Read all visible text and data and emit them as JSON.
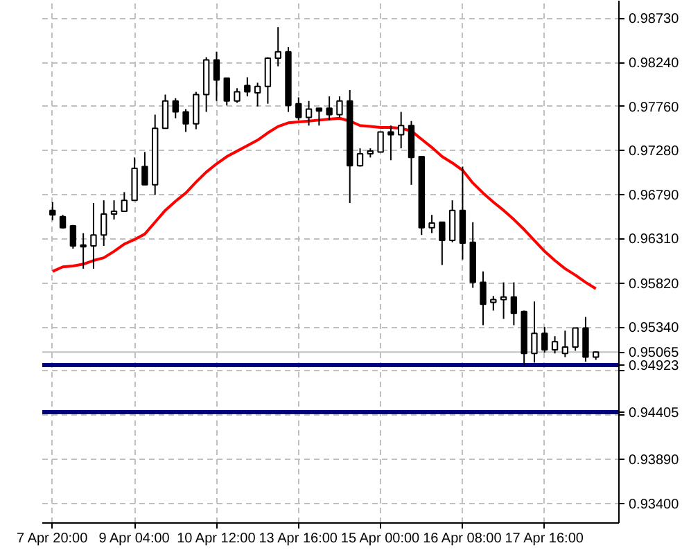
{
  "chart_data": {
    "type": "candlestick",
    "categories": [
      "7 Apr 20:00",
      null,
      null,
      null,
      null,
      null,
      null,
      null,
      "9 Apr 04:00",
      null,
      null,
      null,
      null,
      null,
      null,
      null,
      "10 Apr 12:00",
      null,
      null,
      null,
      null,
      null,
      null,
      null,
      "13 Apr 16:00",
      null,
      null,
      null,
      null,
      null,
      null,
      null,
      "15 Apr 00:00",
      null,
      null,
      null,
      null,
      null,
      null,
      null,
      "16 Apr 08:00",
      null,
      null,
      null,
      null,
      null,
      null,
      null,
      "17 Apr 16:00",
      null,
      null,
      null,
      null,
      null
    ],
    "ohlc": [
      [
        0.9662,
        0.9671,
        0.9651,
        0.9657
      ],
      [
        0.9655,
        0.9657,
        0.9642,
        0.9643
      ],
      [
        0.9645,
        0.9646,
        0.962,
        0.9623
      ],
      [
        0.9624,
        0.9637,
        0.9598,
        0.9622
      ],
      [
        0.9623,
        0.967,
        0.9598,
        0.9635
      ],
      [
        0.9635,
        0.9673,
        0.9623,
        0.9658
      ],
      [
        0.9658,
        0.9673,
        0.9652,
        0.9661
      ],
      [
        0.9661,
        0.9682,
        0.9661,
        0.9673
      ],
      [
        0.9673,
        0.972,
        0.9673,
        0.9708
      ],
      [
        0.971,
        0.9726,
        0.969,
        0.969
      ],
      [
        0.969,
        0.9767,
        0.9679,
        0.9752
      ],
      [
        0.9752,
        0.9789,
        0.9752,
        0.9782
      ],
      [
        0.9782,
        0.9785,
        0.9763,
        0.977
      ],
      [
        0.977,
        0.9773,
        0.9748,
        0.9757
      ],
      [
        0.9757,
        0.9792,
        0.9751,
        0.9789
      ],
      [
        0.9789,
        0.983,
        0.977,
        0.9827
      ],
      [
        0.9827,
        0.9836,
        0.9782,
        0.9805
      ],
      [
        0.9807,
        0.9807,
        0.9777,
        0.9782
      ],
      [
        0.9782,
        0.9796,
        0.978,
        0.9792
      ],
      [
        0.9799,
        0.9808,
        0.9787,
        0.9792
      ],
      [
        0.9791,
        0.9802,
        0.9776,
        0.9798
      ],
      [
        0.9798,
        0.983,
        0.9779,
        0.9829
      ],
      [
        0.9829,
        0.9863,
        0.982,
        0.9836
      ],
      [
        0.9836,
        0.9841,
        0.977,
        0.9777
      ],
      [
        0.9779,
        0.9786,
        0.9761,
        0.9764
      ],
      [
        0.9764,
        0.9782,
        0.9755,
        0.9773
      ],
      [
        0.9774,
        0.9774,
        0.9755,
        0.9771
      ],
      [
        0.9774,
        0.9787,
        0.9761,
        0.9767
      ],
      [
        0.9767,
        0.9787,
        0.9764,
        0.9782
      ],
      [
        0.9782,
        0.9794,
        0.967,
        0.9711
      ],
      [
        0.9711,
        0.973,
        0.971,
        0.9724
      ],
      [
        0.9724,
        0.973,
        0.972,
        0.9727
      ],
      [
        0.9726,
        0.9748,
        0.9726,
        0.9748
      ],
      [
        0.9748,
        0.9755,
        0.9717,
        0.9745
      ],
      [
        0.9745,
        0.977,
        0.973,
        0.9755
      ],
      [
        0.9755,
        0.976,
        0.969,
        0.972
      ],
      [
        0.9721,
        0.9721,
        0.9635,
        0.9643
      ],
      [
        0.9643,
        0.9657,
        0.9637,
        0.9648
      ],
      [
        0.9649,
        0.9649,
        0.9602,
        0.9629
      ],
      [
        0.9629,
        0.9673,
        0.9627,
        0.9662
      ],
      [
        0.9662,
        0.971,
        0.9608,
        0.9626
      ],
      [
        0.9627,
        0.9649,
        0.9577,
        0.9583
      ],
      [
        0.9583,
        0.9595,
        0.9536,
        0.9559
      ],
      [
        0.9561,
        0.9568,
        0.9552,
        0.9564
      ],
      [
        0.9564,
        0.9583,
        0.9543,
        0.9567
      ],
      [
        0.9567,
        0.9583,
        0.9536,
        0.9549
      ],
      [
        0.9551,
        0.9552,
        0.9492,
        0.9505
      ],
      [
        0.9505,
        0.9562,
        0.9495,
        0.9527
      ],
      [
        0.9527,
        0.9534,
        0.9506,
        0.9509
      ],
      [
        0.9509,
        0.9524,
        0.9505,
        0.9518
      ],
      [
        0.9505,
        0.953,
        0.9501,
        0.9512
      ],
      [
        0.9512,
        0.9533,
        0.9508,
        0.9533
      ],
      [
        0.9533,
        0.9545,
        0.9496,
        0.9501
      ],
      [
        0.9501,
        0.9507,
        0.9498,
        0.95065
      ]
    ],
    "series": [
      {
        "type": "line",
        "color": "#ff0000",
        "values": [
          0.9595,
          0.96,
          0.9601,
          0.9603,
          0.9607,
          0.961,
          0.9617,
          0.9625,
          0.963,
          0.9636,
          0.9649,
          0.9662,
          0.9672,
          0.9681,
          0.9693,
          0.9704,
          0.9713,
          0.9721,
          0.9727,
          0.9733,
          0.9739,
          0.9747,
          0.9754,
          0.9758,
          0.9759,
          0.976,
          0.9761,
          0.9762,
          0.9763,
          0.976,
          0.9755,
          0.9754,
          0.9753,
          0.9753,
          0.9752,
          0.9749,
          0.974,
          0.9731,
          0.9721,
          0.9714,
          0.9706,
          0.9692,
          0.9681,
          0.9671,
          0.9662,
          0.9652,
          0.9641,
          0.9629,
          0.9617,
          0.9607,
          0.9598,
          0.9591,
          0.9583,
          0.9576
        ]
      }
    ],
    "ylim": [
      0.9319,
      0.9892
    ],
    "yticks": [
      {
        "value": 0.9873,
        "label": "0.98730"
      },
      {
        "value": 0.9824,
        "label": "0.98240"
      },
      {
        "value": 0.9776,
        "label": "0.97760"
      },
      {
        "value": 0.9728,
        "label": "0.97280"
      },
      {
        "value": 0.9679,
        "label": "0.96790"
      },
      {
        "value": 0.9631,
        "label": "0.96310"
      },
      {
        "value": 0.9582,
        "label": "0.95820"
      },
      {
        "value": 0.9534,
        "label": "0.95340"
      },
      {
        "value": 0.9486,
        "label": null
      },
      {
        "value": 0.9438,
        "label": null
      },
      {
        "value": 0.9389,
        "label": "0.93890"
      },
      {
        "value": 0.934,
        "label": "0.93400"
      }
    ],
    "grid": true,
    "ref_lines": [
      {
        "axis": "y",
        "value": 0.95065,
        "label": "0.95065",
        "color": "#c0c0c0"
      },
      {
        "axis": "y",
        "value": 0.94923,
        "label": "0.94923",
        "color": "#000080"
      },
      {
        "axis": "y",
        "value": 0.94405,
        "label": "0.94405",
        "color": "#000080"
      }
    ]
  }
}
